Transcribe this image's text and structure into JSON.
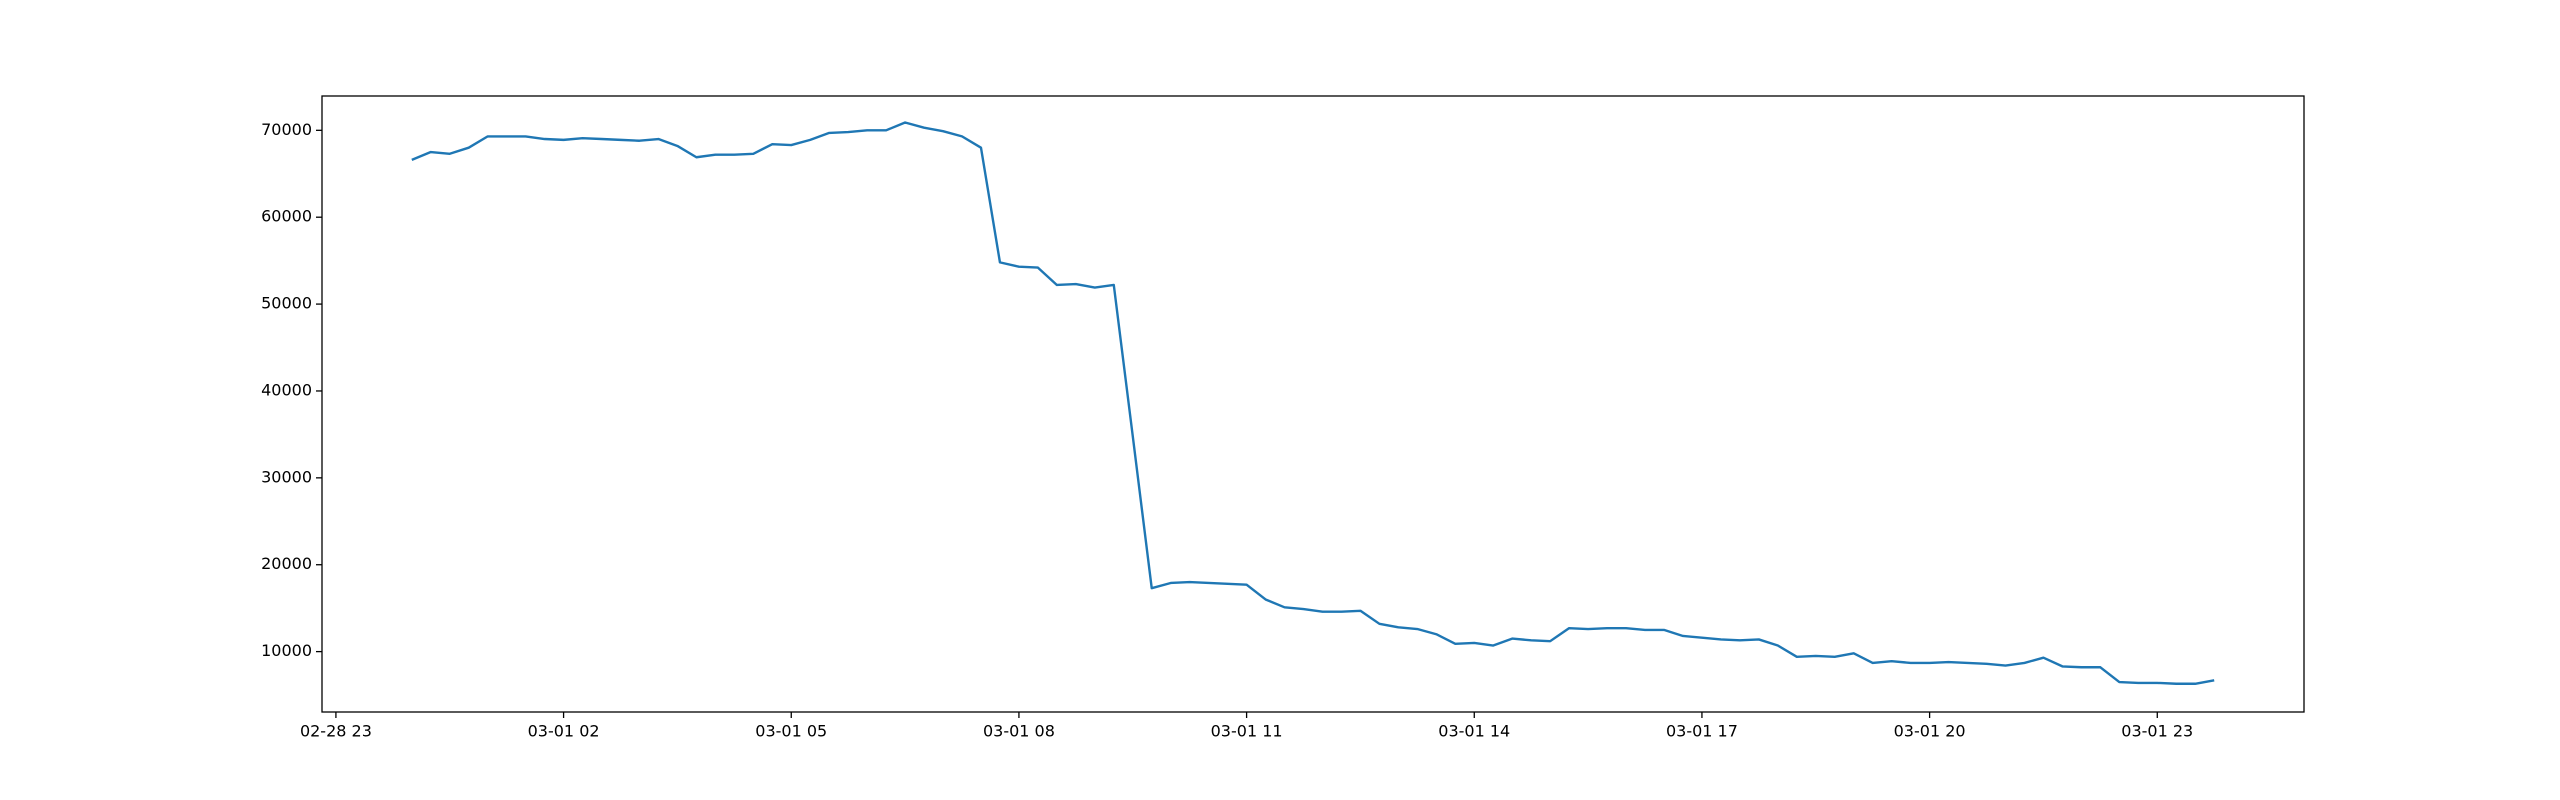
{
  "chart_data": {
    "type": "line",
    "color": "#1f77b4",
    "x": [
      "03-01 00:00",
      "03-01 00:15",
      "03-01 00:30",
      "03-01 00:45",
      "03-01 01:00",
      "03-01 01:15",
      "03-01 01:30",
      "03-01 01:45",
      "03-01 02:00",
      "03-01 02:15",
      "03-01 02:30",
      "03-01 02:45",
      "03-01 03:00",
      "03-01 03:15",
      "03-01 03:30",
      "03-01 03:45",
      "03-01 04:00",
      "03-01 04:15",
      "03-01 04:30",
      "03-01 04:45",
      "03-01 05:00",
      "03-01 05:15",
      "03-01 05:30",
      "03-01 05:45",
      "03-01 06:00",
      "03-01 06:15",
      "03-01 06:30",
      "03-01 06:45",
      "03-01 07:00",
      "03-01 07:15",
      "03-01 07:30",
      "03-01 07:45",
      "03-01 08:00",
      "03-01 08:15",
      "03-01 08:30",
      "03-01 08:45",
      "03-01 09:00",
      "03-01 09:15",
      "03-01 09:30",
      "03-01 09:45",
      "03-01 10:00",
      "03-01 10:15",
      "03-01 10:30",
      "03-01 10:45",
      "03-01 11:00",
      "03-01 11:15",
      "03-01 11:30",
      "03-01 11:45",
      "03-01 12:00",
      "03-01 12:15",
      "03-01 12:30",
      "03-01 12:45",
      "03-01 13:00",
      "03-01 13:15",
      "03-01 13:30",
      "03-01 13:45",
      "03-01 14:00",
      "03-01 14:15",
      "03-01 14:30",
      "03-01 14:45",
      "03-01 15:00",
      "03-01 15:15",
      "03-01 15:30",
      "03-01 15:45",
      "03-01 16:00",
      "03-01 16:15",
      "03-01 16:30",
      "03-01 16:45",
      "03-01 17:00",
      "03-01 17:15",
      "03-01 17:30",
      "03-01 17:45",
      "03-01 18:00",
      "03-01 18:15",
      "03-01 18:30",
      "03-01 18:45",
      "03-01 19:00",
      "03-01 19:15",
      "03-01 19:30",
      "03-01 19:45",
      "03-01 20:00",
      "03-01 20:15",
      "03-01 20:30",
      "03-01 20:45",
      "03-01 21:00",
      "03-01 21:15",
      "03-01 21:30",
      "03-01 21:45",
      "03-01 22:00",
      "03-01 22:15",
      "03-01 22:30",
      "03-01 22:45",
      "03-01 23:00",
      "03-01 23:15",
      "03-01 23:30",
      "03-01 23:45"
    ],
    "values": [
      66600,
      67500,
      67300,
      68000,
      69300,
      69300,
      69300,
      69000,
      68900,
      69100,
      69000,
      68900,
      68800,
      69000,
      68200,
      66900,
      67200,
      67200,
      67300,
      68400,
      68300,
      68900,
      69700,
      69800,
      70000,
      70000,
      70900,
      70300,
      69900,
      69300,
      68000,
      54800,
      54300,
      54200,
      52200,
      52300,
      51900,
      52200,
      34800,
      17300,
      17900,
      18000,
      17900,
      17800,
      17700,
      16000,
      15100,
      14900,
      14600,
      14600,
      14700,
      13200,
      12800,
      12600,
      12000,
      10900,
      11000,
      10700,
      11500,
      11300,
      11200,
      12700,
      12600,
      12700,
      12700,
      12500,
      12500,
      11800,
      11600,
      11400,
      11300,
      11400,
      10700,
      9400,
      9500,
      9400,
      9800,
      8700,
      8900,
      8700,
      8700,
      8800,
      8700,
      8600,
      8400,
      8700,
      9300,
      8300,
      8200,
      8200,
      6500,
      6400,
      6400,
      6300,
      6300,
      6700
    ],
    "xlim": [
      "02-28 22:49",
      "03-02 00:56"
    ],
    "xticks": [
      {
        "value": "02-28 23:00",
        "label": "02-28 23"
      },
      {
        "value": "03-01 02:00",
        "label": "03-01 02"
      },
      {
        "value": "03-01 05:00",
        "label": "03-01 05"
      },
      {
        "value": "03-01 08:00",
        "label": "03-01 08"
      },
      {
        "value": "03-01 11:00",
        "label": "03-01 11"
      },
      {
        "value": "03-01 14:00",
        "label": "03-01 14"
      },
      {
        "value": "03-01 17:00",
        "label": "03-01 17"
      },
      {
        "value": "03-01 20:00",
        "label": "03-01 20"
      },
      {
        "value": "03-01 23:00",
        "label": "03-01 23"
      }
    ],
    "ylim": [
      3050,
      73950
    ],
    "yticks": [
      10000,
      20000,
      30000,
      40000,
      50000,
      60000,
      70000
    ]
  }
}
